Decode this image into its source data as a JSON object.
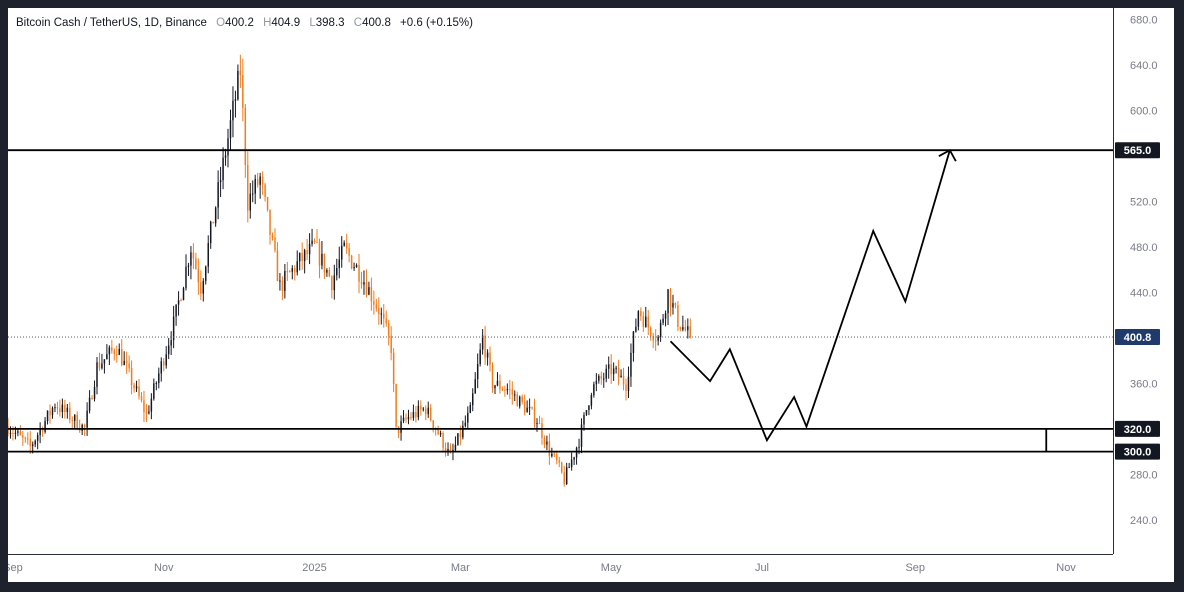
{
  "legend": {
    "symbol": "Bitcoin Cash / TetherUS, 1D, Binance",
    "o_label": "O",
    "o_value": "400.2",
    "h_label": "H",
    "h_value": "404.9",
    "l_label": "L",
    "l_value": "398.3",
    "c_label": "C",
    "c_value": "400.8",
    "change": "+0.6 (+0.15%)"
  },
  "colors": {
    "up": "#131722",
    "down": "#f07c1b",
    "price_badge": "#1f3a6b",
    "level_badge": "#131722",
    "axis_text": "#787b86"
  },
  "chart_data": {
    "type": "candlestick",
    "ylim": [
      210,
      690
    ],
    "x_range": [
      "2024-08-30",
      "2025-11-20"
    ],
    "y_ticks": [
      240,
      280,
      360,
      440,
      480,
      520,
      600,
      640,
      680
    ],
    "y_tick_labels": [
      "240.0",
      "280.0",
      "360.0",
      "440.0",
      "480.0",
      "520.0",
      "600.0",
      "640.0",
      "680.0"
    ],
    "x_ticks": [
      {
        "date": "2024-09-01",
        "label": "Sep"
      },
      {
        "date": "2024-11-01",
        "label": "Nov"
      },
      {
        "date": "2025-01-01",
        "label": "2025"
      },
      {
        "date": "2025-03-01",
        "label": "Mar"
      },
      {
        "date": "2025-05-01",
        "label": "May"
      },
      {
        "date": "2025-07-01",
        "label": "Jul"
      },
      {
        "date": "2025-09-01",
        "label": "Sep"
      },
      {
        "date": "2025-11-01",
        "label": "Nov"
      }
    ],
    "last_price": {
      "value": 400.8,
      "label": "400.8"
    },
    "levels": [
      {
        "value": 565,
        "label": "565.0"
      },
      {
        "value": 320,
        "label": "320.0"
      },
      {
        "value": 300,
        "label": "300.0"
      }
    ],
    "range_box": {
      "top": 320,
      "bottom": 300,
      "from": "2024-08-30",
      "to": "2025-10-24"
    },
    "projection": [
      {
        "date": "2025-05-25",
        "value": 397
      },
      {
        "date": "2025-06-10",
        "value": 362
      },
      {
        "date": "2025-06-18",
        "value": 390
      },
      {
        "date": "2025-07-03",
        "value": 310
      },
      {
        "date": "2025-07-14",
        "value": 348
      },
      {
        "date": "2025-07-19",
        "value": 322
      },
      {
        "date": "2025-08-15",
        "value": 494
      },
      {
        "date": "2025-08-28",
        "value": 432
      },
      {
        "date": "2025-09-15",
        "value": 565
      }
    ],
    "price_path": [
      [
        "2024-08-30",
        322
      ],
      [
        "2024-09-08",
        304
      ],
      [
        "2024-09-18",
        342
      ],
      [
        "2024-09-30",
        320
      ],
      [
        "2024-10-05",
        375
      ],
      [
        "2024-10-13",
        392
      ],
      [
        "2024-10-25",
        332
      ],
      [
        "2024-11-05",
        412
      ],
      [
        "2024-11-12",
        480
      ],
      [
        "2024-11-16",
        445
      ],
      [
        "2024-11-24",
        540
      ],
      [
        "2024-12-02",
        635
      ],
      [
        "2024-12-05",
        520
      ],
      [
        "2024-12-10",
        540
      ],
      [
        "2024-12-18",
        445
      ],
      [
        "2024-12-25",
        465
      ],
      [
        "2025-01-01",
        480
      ],
      [
        "2025-01-08",
        450
      ],
      [
        "2025-01-13",
        478
      ],
      [
        "2025-01-20",
        455
      ],
      [
        "2025-01-27",
        425
      ],
      [
        "2025-02-01",
        392
      ],
      [
        "2025-02-03",
        318
      ],
      [
        "2025-02-08",
        330
      ],
      [
        "2025-02-15",
        338
      ],
      [
        "2025-02-25",
        295
      ],
      [
        "2025-03-05",
        335
      ],
      [
        "2025-03-10",
        400
      ],
      [
        "2025-03-14",
        360
      ],
      [
        "2025-03-20",
        355
      ],
      [
        "2025-04-01",
        328
      ],
      [
        "2025-04-06",
        300
      ],
      [
        "2025-04-09",
        290
      ],
      [
        "2025-04-12",
        275
      ],
      [
        "2025-04-18",
        310
      ],
      [
        "2025-04-23",
        355
      ],
      [
        "2025-05-01",
        372
      ],
      [
        "2025-05-07",
        360
      ],
      [
        "2025-05-12",
        425
      ],
      [
        "2025-05-16",
        410
      ],
      [
        "2025-05-20",
        400
      ],
      [
        "2025-05-24",
        440
      ],
      [
        "2025-05-28",
        415
      ],
      [
        "2025-06-02",
        400.8
      ]
    ]
  }
}
